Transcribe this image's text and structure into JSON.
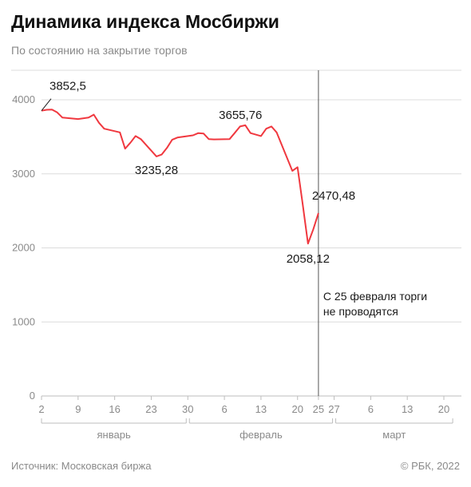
{
  "header": {
    "title": "Динамика индекса Мосбиржи",
    "subtitle": "По состоянию на закрытие торгов"
  },
  "footer": {
    "source": "Источник: Московская биржа",
    "copyright": "© РБК, 2022"
  },
  "colors": {
    "line": "#f0383f",
    "grid": "#dcdcdc",
    "axis": "#bdbdbd",
    "marker": "#555555",
    "text": "#1a1a1a",
    "muted": "#8a8a8a"
  },
  "chart_data": {
    "type": "line",
    "y_ticks": [
      0,
      1000,
      2000,
      3000,
      4000
    ],
    "x_ticks": [
      {
        "day": 2,
        "label": "2"
      },
      {
        "day": 9,
        "label": "9"
      },
      {
        "day": 16,
        "label": "16"
      },
      {
        "day": 23,
        "label": "23"
      },
      {
        "day": 30,
        "label": "30"
      },
      {
        "day": 37,
        "label": "6"
      },
      {
        "day": 44,
        "label": "13"
      },
      {
        "day": 51,
        "label": "20"
      },
      {
        "day": 55,
        "label": "25"
      },
      {
        "day": 58,
        "label": "27"
      },
      {
        "day": 65,
        "label": "6"
      },
      {
        "day": 72,
        "label": "13"
      },
      {
        "day": 79,
        "label": "20"
      }
    ],
    "months": [
      {
        "label": "январь",
        "from": 2,
        "to": 30
      },
      {
        "label": "февраль",
        "from": 30,
        "to": 58
      },
      {
        "label": "март",
        "from": 58,
        "to": 81
      }
    ],
    "x": [
      2,
      3,
      4,
      5,
      6,
      9,
      11,
      12,
      13,
      14,
      17,
      18,
      19,
      20,
      21,
      24,
      25,
      26,
      27,
      28,
      31,
      32,
      33,
      34,
      35,
      38,
      39,
      40,
      41,
      42,
      44,
      45,
      46,
      47,
      50,
      51,
      52,
      53,
      54,
      55
    ],
    "y": [
      3852.5,
      3865,
      3868,
      3830,
      3760,
      3740,
      3760,
      3800,
      3690,
      3610,
      3560,
      3340,
      3420,
      3510,
      3470,
      3235.28,
      3260,
      3350,
      3460,
      3490,
      3520,
      3550,
      3545,
      3470,
      3465,
      3470,
      3555,
      3640,
      3655.76,
      3550,
      3510,
      3610,
      3640,
      3560,
      3040,
      3090,
      2580,
      2058.12,
      2250,
      2470.48
    ],
    "annotations": [
      {
        "x": 2,
        "y": 3852.5,
        "label": "3852,5"
      },
      {
        "x": 24,
        "y": 3235.28,
        "label": "3235,28"
      },
      {
        "x": 41,
        "y": 3655.76,
        "label": "3655,76"
      },
      {
        "x": 53,
        "y": 2058.12,
        "label": "2058,12"
      },
      {
        "x": 55,
        "y": 2470.48,
        "label": "2470,48"
      }
    ],
    "marker": {
      "x": 55,
      "text_lines": [
        "С 25 февраля торги",
        "не проводятся"
      ]
    },
    "ylim": [
      0,
      4300
    ],
    "grid": true
  }
}
